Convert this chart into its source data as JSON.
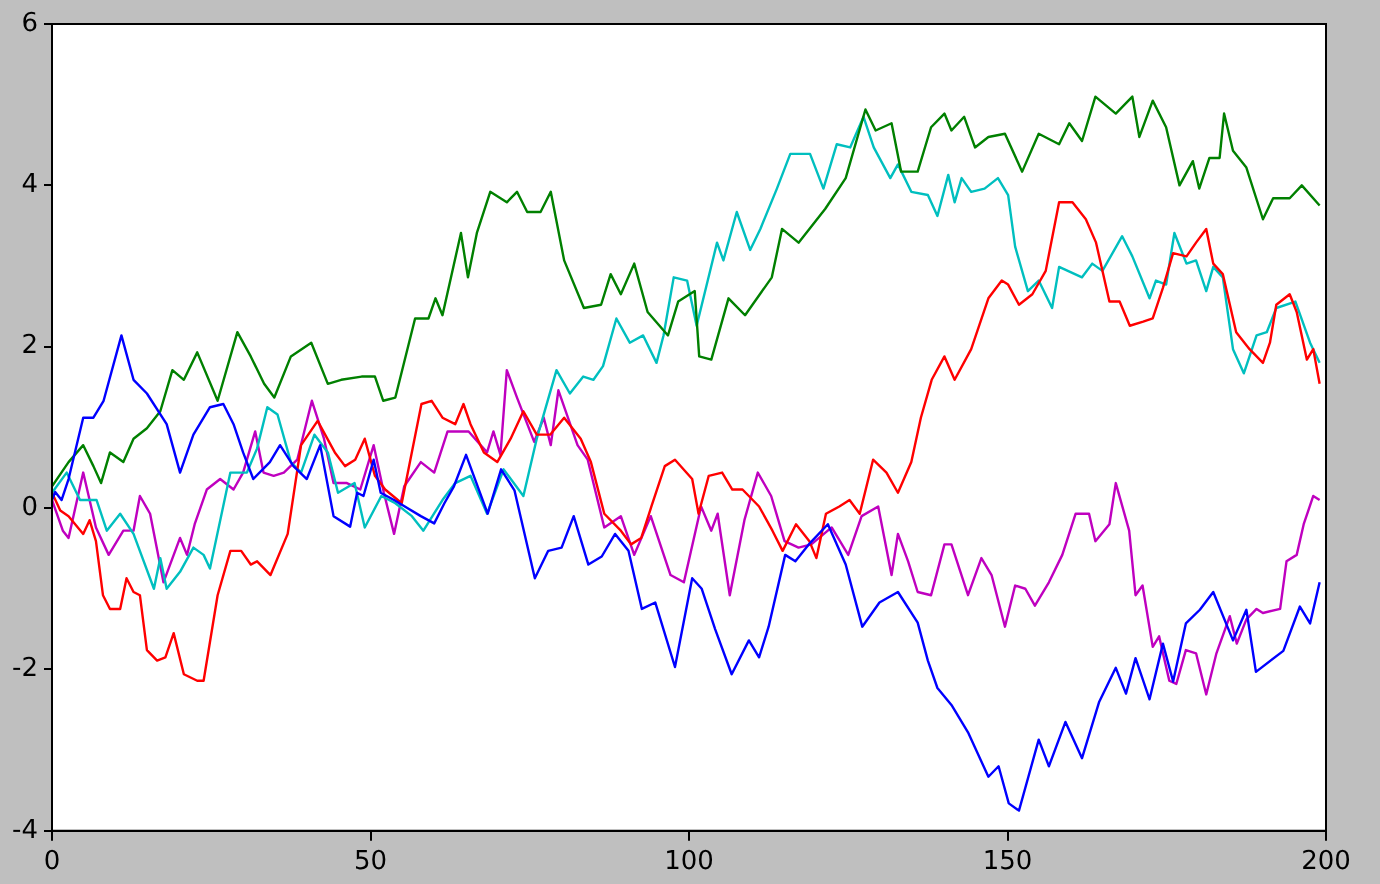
{
  "chart_data": {
    "type": "line",
    "xlim": [
      0,
      200
    ],
    "ylim": [
      -4,
      6
    ],
    "xticks": [
      0,
      50,
      100,
      150,
      200
    ],
    "yticks": [
      -4,
      -2,
      0,
      2,
      4,
      6
    ],
    "grid": false,
    "legend": false,
    "series": [
      {
        "color": "#0000ff",
        "x": [
          0,
          0.5,
          1.5,
          2.6,
          4.9,
          6.5,
          8.1,
          10.9,
          12.8,
          14.9,
          18,
          20.1,
          22.2,
          24.8,
          26.9,
          28.5,
          30,
          31.6,
          34.2,
          35.8,
          37.9,
          40,
          42.1,
          44.2,
          46.8,
          47.9,
          48.9,
          50.5,
          51.6,
          53.7,
          57.9,
          60,
          61.6,
          63.1,
          65,
          68.4,
          70.5,
          72.6,
          75.8,
          77.9,
          80,
          81.9,
          84.2,
          86.3,
          88.4,
          90.5,
          92.6,
          94.7,
          97.8,
          100.5,
          102,
          104.1,
          106.7,
          109.4,
          111,
          112.5,
          115.1,
          116.7,
          118.8,
          121.8,
          124.6,
          127.2,
          129.9,
          132.8,
          135.9,
          137.5,
          139,
          141.2,
          143.8,
          147,
          148.6,
          150.2,
          151.8,
          154.9,
          156.5,
          159.1,
          161.7,
          164.4,
          167,
          168.6,
          170.1,
          172.3,
          174.4,
          176,
          178,
          180.2,
          182.3,
          185.4,
          187.5,
          189,
          193.3,
          195.9,
          197.5,
          199
        ],
        "values": [
          0.1,
          0.2,
          0.1,
          0.36,
          1.12,
          1.12,
          1.33,
          2.14,
          1.59,
          1.42,
          1.04,
          0.44,
          0.91,
          1.25,
          1.29,
          1.04,
          0.69,
          0.36,
          0.57,
          0.78,
          0.52,
          0.36,
          0.78,
          -0.1,
          -0.23,
          0.19,
          0.15,
          0.6,
          0.19,
          0.1,
          -0.1,
          -0.19,
          0.06,
          0.27,
          0.66,
          -0.07,
          0.48,
          0.22,
          -0.87,
          -0.53,
          -0.49,
          -0.1,
          -0.7,
          -0.6,
          -0.32,
          -0.53,
          -1.25,
          -1.17,
          -1.97,
          -0.87,
          -1.0,
          -1.5,
          -2.06,
          -1.64,
          -1.85,
          -1.47,
          -0.58,
          -0.66,
          -0.45,
          -0.2,
          -0.7,
          -1.47,
          -1.17,
          -1.04,
          -1.42,
          -1.89,
          -2.23,
          -2.44,
          -2.78,
          -3.33,
          -3.2,
          -3.66,
          -3.75,
          -2.87,
          -3.2,
          -2.65,
          -3.1,
          -2.4,
          -1.98,
          -2.3,
          -1.86,
          -2.37,
          -1.68,
          -2.15,
          -1.43,
          -1.26,
          -1.04,
          -1.64,
          -1.26,
          -2.03,
          -1.77,
          -1.22,
          -1.43,
          -0.92
        ]
      },
      {
        "color": "#008000",
        "x": [
          0,
          2.6,
          4.9,
          6.5,
          7.7,
          9.1,
          11.2,
          12.8,
          14.9,
          17,
          18.9,
          20.7,
          22.8,
          26,
          29.1,
          31.2,
          33.3,
          34.9,
          37.5,
          40.7,
          43.3,
          45.4,
          48.6,
          50.7,
          52,
          53.9,
          57,
          59.1,
          60.2,
          61.3,
          64.2,
          65.3,
          66.7,
          68.8,
          71.4,
          73,
          74.6,
          76.7,
          78.3,
          80.4,
          83.5,
          86.2,
          87.7,
          89.3,
          91.4,
          93.5,
          96.7,
          98.3,
          100.9,
          101.6,
          103.5,
          106.2,
          108.8,
          113,
          114.6,
          117.2,
          119.3,
          121.4,
          124.6,
          127.7,
          129.3,
          131.8,
          133.3,
          135.9,
          138,
          140.1,
          141.2,
          143.2,
          144.9,
          147,
          149.6,
          152.3,
          154.9,
          158.1,
          159.7,
          161.7,
          163.8,
          167,
          169.6,
          170.7,
          172.8,
          174.9,
          177,
          179.1,
          180.1,
          181.7,
          183.3,
          184,
          185.4,
          187.5,
          190.1,
          191.7,
          194.3,
          196.2,
          199
        ],
        "values": [
          0.27,
          0.57,
          0.78,
          0.52,
          0.31,
          0.69,
          0.57,
          0.86,
          0.99,
          1.2,
          1.71,
          1.59,
          1.93,
          1.33,
          2.18,
          1.88,
          1.54,
          1.37,
          1.88,
          2.05,
          1.54,
          1.59,
          1.63,
          1.63,
          1.33,
          1.37,
          2.35,
          2.35,
          2.6,
          2.39,
          3.41,
          2.86,
          3.41,
          3.92,
          3.79,
          3.92,
          3.67,
          3.67,
          3.92,
          3.07,
          2.48,
          2.52,
          2.9,
          2.65,
          3.03,
          2.43,
          2.14,
          2.56,
          2.69,
          1.88,
          1.84,
          2.6,
          2.39,
          2.86,
          3.46,
          3.29,
          3.5,
          3.71,
          4.09,
          4.94,
          4.68,
          4.77,
          4.17,
          4.17,
          4.72,
          4.89,
          4.68,
          4.85,
          4.47,
          4.6,
          4.64,
          4.17,
          4.64,
          4.51,
          4.77,
          4.55,
          5.1,
          4.89,
          5.1,
          4.6,
          5.05,
          4.72,
          4.0,
          4.3,
          3.96,
          4.34,
          4.34,
          4.89,
          4.43,
          4.22,
          3.58,
          3.84,
          3.84,
          4.0,
          3.75
        ]
      },
      {
        "color": "#ff0000",
        "x": [
          0,
          1.3,
          2.6,
          4.9,
          5.9,
          6.9,
          8,
          9.1,
          10.7,
          11.7,
          12.8,
          13.8,
          14.9,
          16.5,
          17.8,
          19.1,
          20.7,
          22.8,
          23.8,
          26,
          28,
          29.7,
          31.2,
          32.2,
          34.3,
          37,
          39.1,
          41.7,
          44.4,
          46,
          47.6,
          49.1,
          50.7,
          52.3,
          54.9,
          58,
          59.6,
          61.3,
          63.3,
          64.6,
          65.7,
          67.8,
          69.9,
          72,
          74,
          76.1,
          78.2,
          80.4,
          83,
          84.6,
          86.7,
          89.3,
          90.9,
          92.5,
          94.1,
          96.2,
          97.8,
          100.5,
          101.5,
          103.1,
          105.2,
          106.8,
          108.4,
          111,
          113.1,
          114.7,
          116.8,
          118.9,
          120,
          121.5,
          123.6,
          125.2,
          126.8,
          128.9,
          131,
          132.8,
          134.9,
          136.4,
          138.1,
          140.1,
          141.7,
          144.3,
          147,
          149.1,
          150.1,
          151.8,
          153.9,
          156,
          158.1,
          160.2,
          162.3,
          163.9,
          166,
          167.6,
          169.2,
          171.3,
          172.8,
          174.4,
          176,
          178.1,
          179.6,
          181.2,
          182.3,
          183.8,
          185.9,
          188,
          190.1,
          191.2,
          192.2,
          194.3,
          195.4,
          197,
          198,
          199
        ],
        "values": [
          0.19,
          -0.03,
          -0.1,
          -0.32,
          -0.15,
          -0.41,
          -1.08,
          -1.25,
          -1.25,
          -0.87,
          -1.04,
          -1.08,
          -1.76,
          -1.89,
          -1.85,
          -1.55,
          -2.06,
          -2.14,
          -2.14,
          -1.08,
          -0.53,
          -0.53,
          -0.7,
          -0.66,
          -0.83,
          -0.32,
          0.78,
          1.08,
          0.69,
          0.52,
          0.6,
          0.86,
          0.4,
          0.23,
          0.06,
          1.29,
          1.33,
          1.12,
          1.04,
          1.29,
          1.04,
          0.69,
          0.57,
          0.86,
          1.2,
          0.91,
          0.91,
          1.12,
          0.86,
          0.57,
          -0.07,
          -0.28,
          -0.45,
          -0.37,
          0.02,
          0.52,
          0.6,
          0.36,
          -0.07,
          0.4,
          0.44,
          0.23,
          0.23,
          0.02,
          -0.28,
          -0.53,
          -0.2,
          -0.41,
          -0.62,
          -0.07,
          0.02,
          0.1,
          -0.07,
          0.6,
          0.44,
          0.19,
          0.57,
          1.12,
          1.59,
          1.88,
          1.59,
          1.97,
          2.6,
          2.82,
          2.77,
          2.52,
          2.65,
          2.94,
          3.79,
          3.79,
          3.58,
          3.29,
          2.56,
          2.56,
          2.26,
          2.31,
          2.35,
          2.73,
          3.16,
          3.12,
          3.29,
          3.46,
          3.03,
          2.9,
          2.18,
          1.97,
          1.8,
          2.05,
          2.52,
          2.65,
          2.43,
          1.84,
          1.97,
          1.54
        ]
      },
      {
        "color": "#00bfbf",
        "x": [
          0,
          2.3,
          4.4,
          7,
          8.6,
          10.7,
          12.8,
          16,
          17,
          18,
          20.1,
          22.2,
          23.8,
          24.8,
          28,
          30.6,
          32.2,
          33.8,
          35.4,
          37.5,
          39.1,
          41.2,
          43.3,
          44.9,
          47.5,
          49.1,
          51.7,
          53.9,
          56.5,
          58.3,
          61.3,
          63.3,
          65.7,
          68.3,
          70.9,
          74,
          76.1,
          79.2,
          81.3,
          83.4,
          85,
          86.5,
          88.6,
          90.7,
          92.8,
          94.9,
          96,
          97.6,
          99.7,
          101.2,
          104.4,
          105.4,
          107.5,
          109.6,
          111.2,
          113.8,
          115.9,
          119,
          121.1,
          123.2,
          125.3,
          127.4,
          129,
          131.6,
          132.8,
          134.9,
          137.5,
          139,
          140.7,
          141.7,
          142.8,
          144.3,
          146.4,
          148.5,
          150.1,
          151.2,
          153.2,
          154.9,
          157,
          158.1,
          161.7,
          163.3,
          164.9,
          168,
          169.6,
          172.3,
          173.3,
          174.9,
          176.2,
          178.1,
          179.6,
          181.2,
          182.3,
          183.8,
          185.4,
          187.1,
          189.1,
          190.7,
          192.2,
          195.2,
          197.5,
          199
        ],
        "values": [
          0.19,
          0.44,
          0.1,
          0.1,
          -0.28,
          -0.07,
          -0.32,
          -1.0,
          -0.62,
          -1.0,
          -0.79,
          -0.49,
          -0.58,
          -0.75,
          0.44,
          0.44,
          0.74,
          1.25,
          1.16,
          0.57,
          0.44,
          0.91,
          0.69,
          0.19,
          0.31,
          -0.24,
          0.15,
          0.06,
          -0.1,
          -0.28,
          0.1,
          0.31,
          0.4,
          -0.07,
          0.48,
          0.15,
          0.86,
          1.71,
          1.42,
          1.63,
          1.59,
          1.76,
          2.35,
          2.05,
          2.14,
          1.8,
          2.14,
          2.86,
          2.82,
          2.26,
          3.29,
          3.07,
          3.67,
          3.2,
          3.46,
          3.96,
          4.39,
          4.39,
          3.96,
          4.51,
          4.47,
          4.85,
          4.47,
          4.09,
          4.26,
          3.92,
          3.88,
          3.62,
          4.13,
          3.79,
          4.09,
          3.92,
          3.96,
          4.09,
          3.88,
          3.24,
          2.69,
          2.82,
          2.48,
          2.99,
          2.86,
          3.03,
          2.94,
          3.37,
          3.12,
          2.6,
          2.82,
          2.77,
          3.41,
          3.03,
          3.07,
          2.69,
          2.99,
          2.86,
          1.97,
          1.67,
          2.14,
          2.18,
          2.48,
          2.56,
          2.05,
          1.8
        ]
      },
      {
        "color": "#bf00bf",
        "x": [
          0,
          1.7,
          2.6,
          4.9,
          6.9,
          8.9,
          11.2,
          12.8,
          13.8,
          15.4,
          17.5,
          20.1,
          21.2,
          22.4,
          24.3,
          26.4,
          28.5,
          30,
          31.9,
          33.2,
          34.8,
          36.4,
          38.5,
          40.8,
          42.7,
          44.2,
          46.3,
          48.4,
          50.5,
          52.1,
          53.7,
          55.3,
          57.9,
          60,
          62.1,
          65.4,
          68.3,
          69.3,
          70.4,
          71.4,
          73,
          75.7,
          77.2,
          78.3,
          79.5,
          82.5,
          84.1,
          86.7,
          89.3,
          91.4,
          94,
          97.1,
          99.2,
          101.9,
          103.5,
          104.5,
          106.4,
          108.7,
          110.8,
          112.9,
          115,
          117.2,
          119.2,
          122.4,
          125,
          127.1,
          129.7,
          131.8,
          132.8,
          134.4,
          135.9,
          138,
          140.1,
          141.2,
          143.8,
          145.9,
          147.5,
          149.6,
          151.2,
          152.8,
          154.3,
          156.5,
          158.6,
          160.7,
          162.8,
          163.8,
          166,
          167,
          169.1,
          170.1,
          171.2,
          172.8,
          173.8,
          175.4,
          176.5,
          178,
          179.6,
          181.2,
          182.8,
          184.9,
          186,
          187.5,
          189.1,
          190.1,
          192.8,
          193.8,
          195.4,
          196.5,
          198,
          199
        ],
        "values": [
          0.1,
          -0.28,
          -0.37,
          0.44,
          -0.24,
          -0.58,
          -0.28,
          -0.28,
          0.15,
          -0.07,
          -0.92,
          -0.37,
          -0.58,
          -0.2,
          0.23,
          0.36,
          0.23,
          0.44,
          0.95,
          0.44,
          0.4,
          0.44,
          0.6,
          1.33,
          0.86,
          0.31,
          0.31,
          0.23,
          0.78,
          0.19,
          -0.32,
          0.27,
          0.57,
          0.44,
          0.95,
          0.95,
          0.69,
          0.95,
          0.66,
          1.71,
          1.37,
          0.82,
          1.12,
          0.78,
          1.46,
          0.78,
          0.6,
          -0.24,
          -0.1,
          -0.58,
          -0.1,
          -0.83,
          -0.92,
          0.02,
          -0.28,
          -0.07,
          -1.08,
          -0.15,
          0.44,
          0.15,
          -0.41,
          -0.49,
          -0.45,
          -0.24,
          -0.58,
          -0.1,
          0.02,
          -0.83,
          -0.32,
          -0.66,
          -1.04,
          -1.08,
          -0.45,
          -0.45,
          -1.08,
          -0.62,
          -0.83,
          -1.47,
          -0.96,
          -1.0,
          -1.21,
          -0.92,
          -0.58,
          -0.07,
          -0.07,
          -0.41,
          -0.2,
          0.31,
          -0.28,
          -1.08,
          -0.96,
          -1.72,
          -1.59,
          -2.14,
          -2.18,
          -1.76,
          -1.8,
          -2.31,
          -1.8,
          -1.34,
          -1.68,
          -1.38,
          -1.25,
          -1.3,
          -1.25,
          -0.66,
          -0.58,
          -0.2,
          0.15,
          0.1
        ]
      }
    ]
  }
}
